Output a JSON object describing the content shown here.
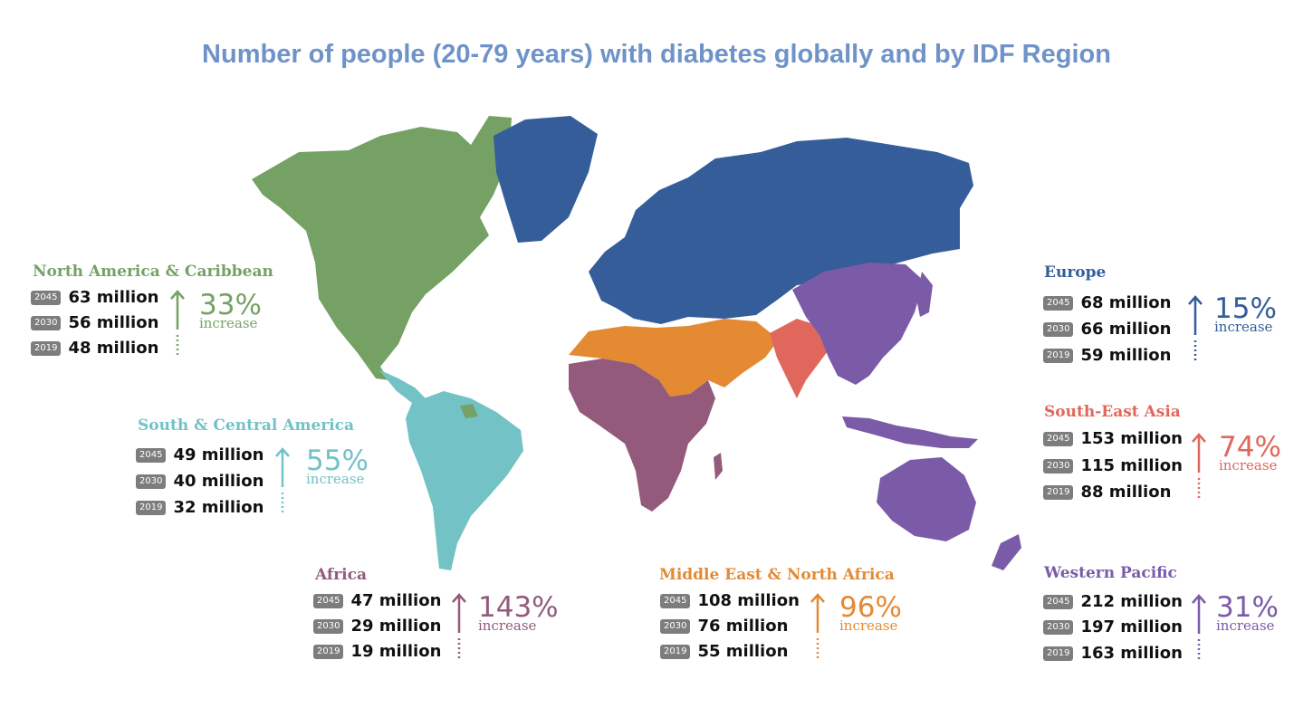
{
  "title": "Number of people (20-79 years) with diabetes globally and by IDF Region",
  "colors": {
    "north_america": "#75a264",
    "south_central_america": "#72c2c6",
    "europe": "#345d9a",
    "africa": "#935a7b",
    "mena": "#e48a33",
    "south_east_asia": "#e0675c",
    "western_pacific": "#7b5ba8",
    "title": "#6f93c9"
  },
  "regions": [
    {
      "id": "north-america-caribbean",
      "name": "North America & Caribbean",
      "color": "#75a264",
      "y2045": "63 million",
      "y2030": "56 million",
      "y2019": "48 million",
      "percent": "33%",
      "increase_label": "increase"
    },
    {
      "id": "south-central-america",
      "name": "South & Central America",
      "color": "#72c2c6",
      "y2045": "49 million",
      "y2030": "40 million",
      "y2019": "32 million",
      "percent": "55%",
      "increase_label": "increase"
    },
    {
      "id": "europe",
      "name": "Europe",
      "color": "#345d9a",
      "y2045": "68 million",
      "y2030": "66 million",
      "y2019": "59 million",
      "percent": "15%",
      "increase_label": "increase"
    },
    {
      "id": "south-east-asia",
      "name": "South-East Asia",
      "color": "#e0675c",
      "y2045": "153 million",
      "y2030": "115 million",
      "y2019": "88 million",
      "percent": "74%",
      "increase_label": "increase"
    },
    {
      "id": "africa",
      "name": "Africa",
      "color": "#935a7b",
      "y2045": "47 million",
      "y2030": "29 million",
      "y2019": "19 million",
      "percent": "143%",
      "increase_label": "increase"
    },
    {
      "id": "middle-east-north-africa",
      "name": "Middle East & North Africa",
      "color": "#e48a33",
      "y2045": "108 million",
      "y2030": "76 million",
      "y2019": "55 million",
      "percent": "96%",
      "increase_label": "increase"
    },
    {
      "id": "western-pacific",
      "name": "Western Pacific",
      "color": "#7b5ba8",
      "y2045": "212 million",
      "y2030": "197 million",
      "y2019": "163 million",
      "percent": "31%",
      "increase_label": "increase"
    }
  ],
  "year_labels": {
    "a": "2045",
    "b": "2030",
    "c": "2019"
  }
}
